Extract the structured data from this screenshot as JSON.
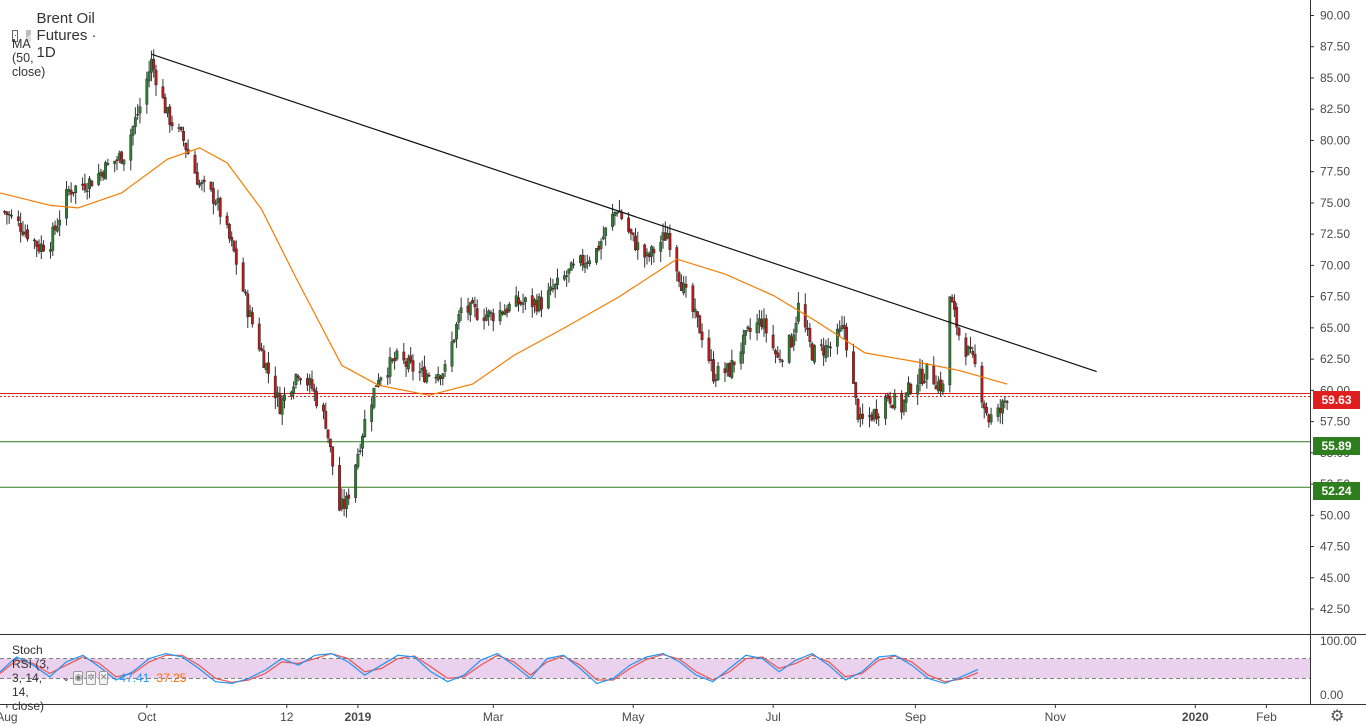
{
  "title": "Brent Oil Futures · 1D",
  "indicator_ma": "MA (50, close)",
  "stoch": {
    "label": "Stoch RSI (3, 3, 14, 14, close)",
    "k_value": "47.41",
    "d_value": "37.25"
  },
  "price_badges": [
    {
      "label": "59.63",
      "color": "#e01e1e"
    },
    {
      "label": "55.89",
      "color": "#2e7d1f"
    },
    {
      "label": "52.24",
      "color": "#2e7d1f"
    }
  ],
  "colors": {
    "up": "#2e7d32",
    "down": "#b71c1c",
    "ma": "#f57c00",
    "stoch_k": "#2196f3",
    "stoch_d": "#ef5350",
    "stoch_band": "#e1bee7",
    "support": "#2e7d1f",
    "current": "#e01e1e"
  },
  "icons": [
    "collapse-icon",
    "symbol-flag-icon",
    "settings-gear-icon",
    "eye-icon",
    "close-icon"
  ],
  "chart_data": {
    "type": "candlestick",
    "price_axis": {
      "min": 40.5,
      "max": 91.0,
      "ticks": [
        "90.00",
        "87.50",
        "85.00",
        "82.50",
        "80.00",
        "77.50",
        "75.00",
        "72.50",
        "70.00",
        "67.50",
        "65.00",
        "62.50",
        "60.00",
        "57.50",
        "55.00",
        "52.50",
        "50.00",
        "47.50",
        "45.00",
        "42.50"
      ]
    },
    "time_axis": {
      "start": "2018-07-29",
      "end": "2020-02-20",
      "labels": [
        {
          "text": "Aug",
          "date": "2018-08-01"
        },
        {
          "text": "Oct",
          "date": "2018-10-01"
        },
        {
          "text": "12",
          "date": "2018-12-01"
        },
        {
          "text": "2019",
          "date": "2019-01-01"
        },
        {
          "text": "Mar",
          "date": "2019-03-01"
        },
        {
          "text": "May",
          "date": "2019-05-01"
        },
        {
          "text": "Jul",
          "date": "2019-07-01"
        },
        {
          "text": "Sep",
          "date": "2019-09-01"
        },
        {
          "text": "Nov",
          "date": "2019-11-01"
        },
        {
          "text": "2020",
          "date": "2020-01-01"
        },
        {
          "text": "Feb",
          "date": "2020-02-01"
        }
      ]
    },
    "price_path": [
      [
        "2018-07-31",
        74.3
      ],
      [
        "2018-08-08",
        73.0
      ],
      [
        "2018-08-15",
        71.5
      ],
      [
        "2018-08-20",
        71.9
      ],
      [
        "2018-08-28",
        76.0
      ],
      [
        "2018-09-07",
        76.8
      ],
      [
        "2018-09-14",
        78.0
      ],
      [
        "2018-09-21",
        78.9
      ],
      [
        "2018-09-28",
        82.7
      ],
      [
        "2018-10-03",
        86.3
      ],
      [
        "2018-10-10",
        82.0
      ],
      [
        "2018-10-17",
        80.0
      ],
      [
        "2018-10-24",
        76.5
      ],
      [
        "2018-10-31",
        75.3
      ],
      [
        "2018-11-08",
        71.0
      ],
      [
        "2018-11-14",
        66.5
      ],
      [
        "2018-11-21",
        62.5
      ],
      [
        "2018-11-28",
        58.8
      ],
      [
        "2018-12-06",
        61.6
      ],
      [
        "2018-12-12",
        60.2
      ],
      [
        "2018-12-18",
        57.5
      ],
      [
        "2018-12-24",
        50.5
      ],
      [
        "2018-12-27",
        51.0
      ],
      [
        "2019-01-04",
        57.5
      ],
      [
        "2019-01-10",
        61.2
      ],
      [
        "2019-01-18",
        62.5
      ],
      [
        "2019-01-29",
        61.3
      ],
      [
        "2019-02-08",
        61.6
      ],
      [
        "2019-02-15",
        66.5
      ],
      [
        "2019-02-28",
        66.0
      ],
      [
        "2019-03-12",
        67.0
      ],
      [
        "2019-03-22",
        67.0
      ],
      [
        "2019-04-03",
        69.4
      ],
      [
        "2019-04-15",
        71.2
      ],
      [
        "2019-04-24",
        74.6
      ],
      [
        "2019-05-01",
        72.0
      ],
      [
        "2019-05-07",
        70.5
      ],
      [
        "2019-05-16",
        72.6
      ],
      [
        "2019-05-23",
        68.0
      ],
      [
        "2019-05-31",
        64.5
      ],
      [
        "2019-06-05",
        61.3
      ],
      [
        "2019-06-12",
        61.6
      ],
      [
        "2019-06-20",
        64.5
      ],
      [
        "2019-06-26",
        65.6
      ],
      [
        "2019-07-03",
        62.5
      ],
      [
        "2019-07-09",
        64.0
      ],
      [
        "2019-07-12",
        66.7
      ],
      [
        "2019-07-18",
        63.0
      ],
      [
        "2019-07-26",
        63.5
      ],
      [
        "2019-08-01",
        65.0
      ],
      [
        "2019-08-06",
        59.0
      ],
      [
        "2019-08-08",
        57.4
      ],
      [
        "2019-08-15",
        58.3
      ],
      [
        "2019-08-20",
        59.6
      ],
      [
        "2019-08-26",
        58.6
      ],
      [
        "2019-08-30",
        60.4
      ],
      [
        "2019-09-06",
        61.5
      ],
      [
        "2019-09-13",
        60.2
      ],
      [
        "2019-09-16",
        67.5
      ],
      [
        "2019-09-20",
        64.5
      ],
      [
        "2019-09-27",
        61.9
      ],
      [
        "2019-10-01",
        58.9
      ],
      [
        "2019-10-03",
        57.7
      ],
      [
        "2019-10-08",
        58.3
      ],
      [
        "2019-10-11",
        59.6
      ]
    ],
    "moving_average_50": [
      [
        "2018-07-29",
        75.8
      ],
      [
        "2018-08-20",
        74.8
      ],
      [
        "2018-09-01",
        74.6
      ],
      [
        "2018-09-20",
        75.8
      ],
      [
        "2018-10-10",
        78.5
      ],
      [
        "2018-10-24",
        79.4
      ],
      [
        "2018-11-05",
        78.2
      ],
      [
        "2018-11-20",
        74.5
      ],
      [
        "2018-12-05",
        69.0
      ],
      [
        "2018-12-25",
        62.0
      ],
      [
        "2019-01-10",
        60.4
      ],
      [
        "2019-02-01",
        59.6
      ],
      [
        "2019-02-20",
        60.5
      ],
      [
        "2019-03-10",
        62.8
      ],
      [
        "2019-04-01",
        65.0
      ],
      [
        "2019-04-25",
        67.5
      ],
      [
        "2019-05-20",
        70.5
      ],
      [
        "2019-06-10",
        69.3
      ],
      [
        "2019-07-01",
        67.6
      ],
      [
        "2019-07-20",
        65.5
      ],
      [
        "2019-08-10",
        63.0
      ],
      [
        "2019-09-01",
        62.3
      ],
      [
        "2019-09-20",
        61.6
      ],
      [
        "2019-10-11",
        60.5
      ]
    ],
    "trendline": {
      "from": [
        "2018-10-03",
        86.9
      ],
      "to": [
        "2019-11-19",
        61.5
      ]
    },
    "horizontal_levels": [
      59.63,
      55.89,
      52.24
    ],
    "stoch_rsi": {
      "range": [
        0,
        100
      ],
      "ticks": [
        "100.00",
        "0.00"
      ],
      "bands": [
        80,
        20
      ],
      "k": [
        40,
        85,
        60,
        25,
        70,
        90,
        55,
        15,
        40,
        80,
        95,
        85,
        50,
        10,
        5,
        20,
        45,
        80,
        60,
        90,
        95,
        70,
        30,
        60,
        90,
        85,
        40,
        10,
        30,
        75,
        95,
        60,
        20,
        80,
        90,
        50,
        5,
        20,
        60,
        85,
        95,
        70,
        30,
        10,
        50,
        90,
        80,
        40,
        75,
        95,
        60,
        15,
        40,
        85,
        90,
        60,
        20,
        5,
        25,
        47.41
      ],
      "d": [
        35,
        75,
        65,
        35,
        60,
        85,
        65,
        25,
        35,
        70,
        90,
        90,
        60,
        20,
        8,
        15,
        35,
        70,
        65,
        80,
        95,
        80,
        40,
        50,
        80,
        88,
        55,
        20,
        25,
        60,
        90,
        70,
        30,
        70,
        88,
        60,
        15,
        15,
        50,
        78,
        92,
        78,
        40,
        15,
        40,
        80,
        85,
        50,
        65,
        90,
        70,
        25,
        35,
        75,
        88,
        70,
        30,
        10,
        18,
        37.25
      ]
    }
  }
}
